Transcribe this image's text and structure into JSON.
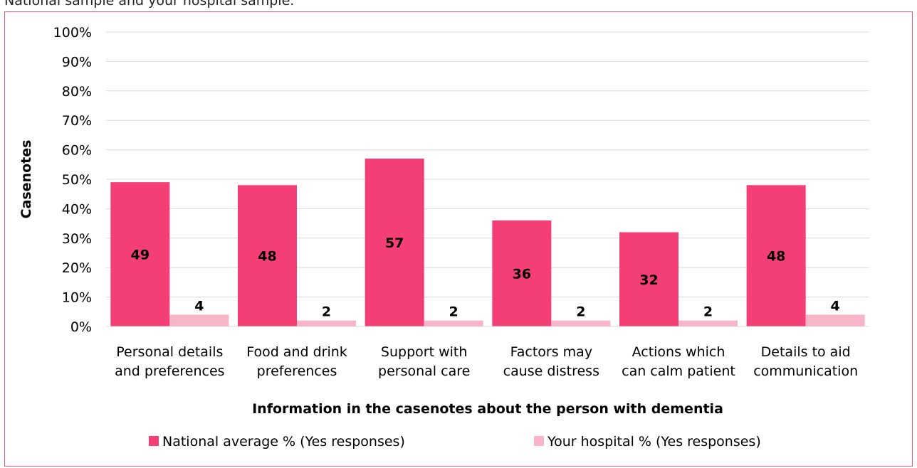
{
  "intro_text": "National sample and your hospital sample.",
  "chart_data": {
    "type": "bar",
    "categories": [
      [
        "Personal details",
        "and preferences"
      ],
      [
        "Food and drink",
        "preferences"
      ],
      [
        "Support with",
        "personal care"
      ],
      [
        "Factors may",
        "cause distress"
      ],
      [
        "Actions which",
        "can calm patient"
      ],
      [
        "Details to aid",
        "communication"
      ]
    ],
    "series": [
      {
        "name": "National average % (Yes responses)",
        "color": "#f43f76",
        "values": [
          49,
          48,
          57,
          36,
          32,
          48
        ]
      },
      {
        "name": "Your hospital % (Yes responses)",
        "color": "#f8b4c9",
        "values": [
          4,
          2,
          2,
          2,
          2,
          4
        ]
      }
    ],
    "xlabel": "Information in the casenotes about the person with dementia",
    "ylabel": "Casenotes",
    "ylim": [
      0,
      100
    ],
    "ytick_step": 10,
    "ytick_suffix": "%",
    "grid": true,
    "legend_position": "bottom"
  }
}
